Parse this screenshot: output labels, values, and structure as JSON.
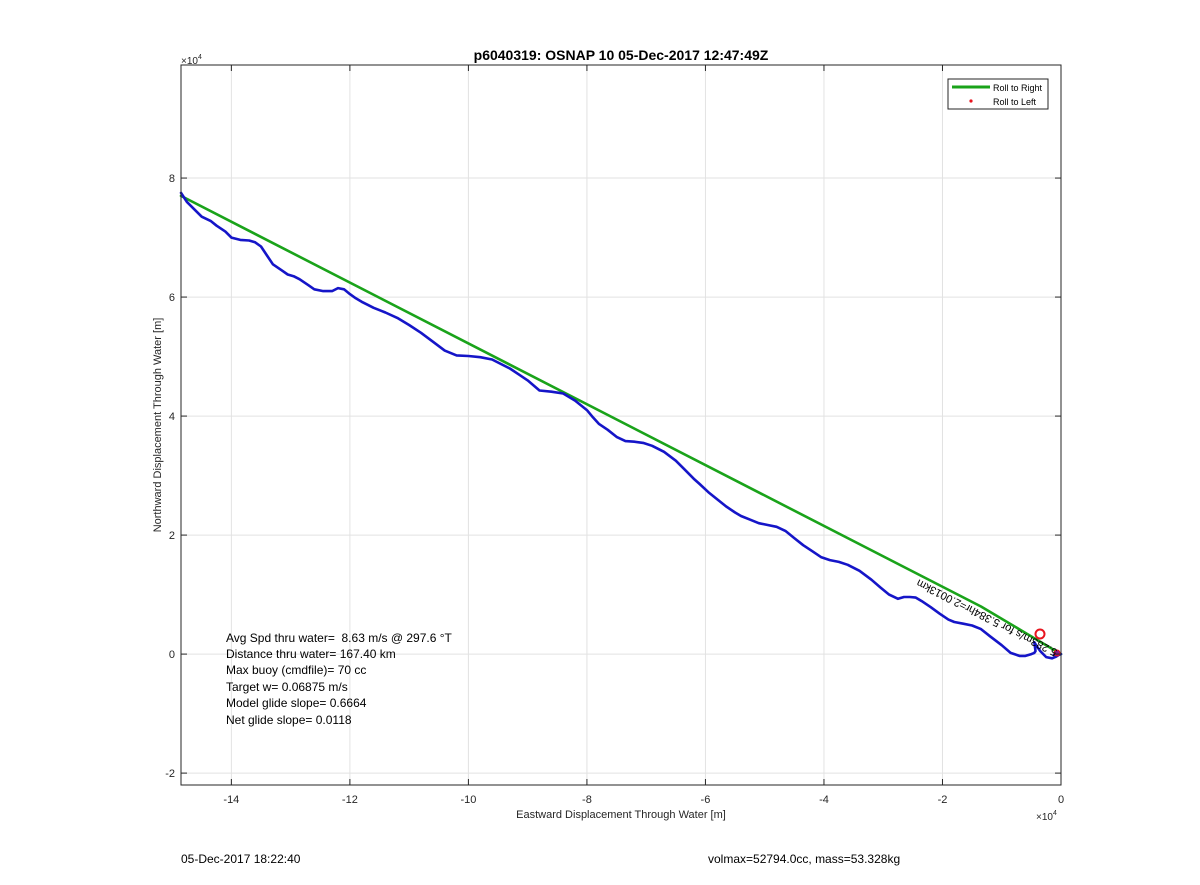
{
  "chart_data": {
    "type": "line",
    "title": "p6040319: OSNAP 10 05-Dec-2017 12:47:49Z",
    "xlabel": "Eastward Displacement Through Water [m]",
    "ylabel": "Northward Displacement Through Water [m]",
    "x_exponent_label": "×10",
    "y_exponent_label": "×10",
    "exponent_power": "4",
    "xlim": [
      -148500,
      0
    ],
    "ylim": [
      -22000,
      99000
    ],
    "grid": true,
    "legend_position": "top-right",
    "x_ticks": [
      -140000,
      -120000,
      -100000,
      -80000,
      -60000,
      -40000,
      -20000,
      0
    ],
    "x_tick_labels": [
      "-14",
      "-12",
      "-10",
      "-8",
      "-6",
      "-4",
      "-2",
      "0"
    ],
    "y_ticks": [
      -20000,
      0,
      20000,
      40000,
      60000,
      80000
    ],
    "y_tick_labels": [
      "-2",
      "0",
      "2",
      "4",
      "6",
      "8"
    ],
    "series": [
      {
        "name": "Roll to Right",
        "color": "#1aa31a",
        "x": [
          0,
          -13500,
          -148500
        ],
        "y": [
          0,
          8000,
          77000
        ]
      },
      {
        "name": "Roll to Left",
        "color": "#e8141e",
        "x": [],
        "y": []
      },
      {
        "color": "#1515c8",
        "x": [
          -148500,
          -147500,
          -146000,
          -145000,
          -143500,
          -142500,
          -141000,
          -140000,
          -138500,
          -137000,
          -136000,
          -135000,
          -134000,
          -133000,
          -131500,
          -130500,
          -129500,
          -128500,
          -127000,
          -126000,
          -124500,
          -123000,
          -122000,
          -121000,
          -120000,
          -119000,
          -118000,
          -117000,
          -116000,
          -114000,
          -112000,
          -110000,
          -108000,
          -106000,
          -104000,
          -102000,
          -100000,
          -98000,
          -96000,
          -95000,
          -93000,
          -91500,
          -90000,
          -88000,
          -86000,
          -84000,
          -82000,
          -80000,
          -79000,
          -78000,
          -76500,
          -75000,
          -73500,
          -72000,
          -70500,
          -69000,
          -67000,
          -65000,
          -63500,
          -62000,
          -61000,
          -59500,
          -58000,
          -56500,
          -55000,
          -54000,
          -52500,
          -51000,
          -49500,
          -48000,
          -46500,
          -45000,
          -43500,
          -42000,
          -40500,
          -39000,
          -37500,
          -36000,
          -34000,
          -32000,
          -30500,
          -29000,
          -27500,
          -26500,
          -25500,
          -24500,
          -23500,
          -22000,
          -20500,
          -19000,
          -18000,
          -16500,
          -15000,
          -13500,
          -12000,
          -10000,
          -8500,
          -7000,
          -6000,
          -5000,
          -4500,
          -4300,
          -4500,
          -4200,
          -3500,
          -2500,
          -1500,
          -800,
          -300,
          0,
          -500,
          -1200
        ],
        "y": [
          77500,
          76000,
          74500,
          73500,
          72800,
          72000,
          71000,
          70000,
          69600,
          69500,
          69200,
          68500,
          67000,
          65500,
          64500,
          63800,
          63500,
          63000,
          62000,
          61300,
          61000,
          61000,
          61500,
          61300,
          60500,
          59800,
          59200,
          58700,
          58200,
          57400,
          56500,
          55300,
          54000,
          52500,
          51000,
          50200,
          50100,
          49900,
          49500,
          49000,
          48000,
          47000,
          46000,
          44300,
          44100,
          43800,
          42600,
          41000,
          39800,
          38700,
          37700,
          36500,
          35800,
          35700,
          35500,
          35000,
          34000,
          32500,
          31000,
          29500,
          28600,
          27200,
          26000,
          24800,
          23800,
          23200,
          22600,
          22000,
          21700,
          21400,
          20700,
          19500,
          18300,
          17300,
          16300,
          15800,
          15500,
          15000,
          14000,
          12500,
          11200,
          10000,
          9300,
          9600,
          9600,
          9500,
          8900,
          7900,
          6800,
          5800,
          5400,
          5100,
          4800,
          4200,
          3000,
          1500,
          200,
          -300,
          -300,
          0,
          200,
          500,
          2000,
          1500,
          500,
          -500,
          -700,
          -400,
          -100,
          0,
          -200,
          -100
        ]
      }
    ],
    "annotations": [
      "Avg Spd thru water=  8.63 m/s @ 297.6 °T",
      "Distance thru water= 167.40 km",
      "Max buoy (cmdfile)= 70 cc",
      "Target w= 0.06875 m/s",
      "Model glide slope= 0.6664",
      "Net glide slope= 0.0118"
    ],
    "rotated_label": "5.283m/s for 5.384hr=2.0013km"
  },
  "footer": {
    "left": "05-Dec-2017 18:22:40",
    "right": "volmax=52794.0cc, mass=53.328kg"
  }
}
